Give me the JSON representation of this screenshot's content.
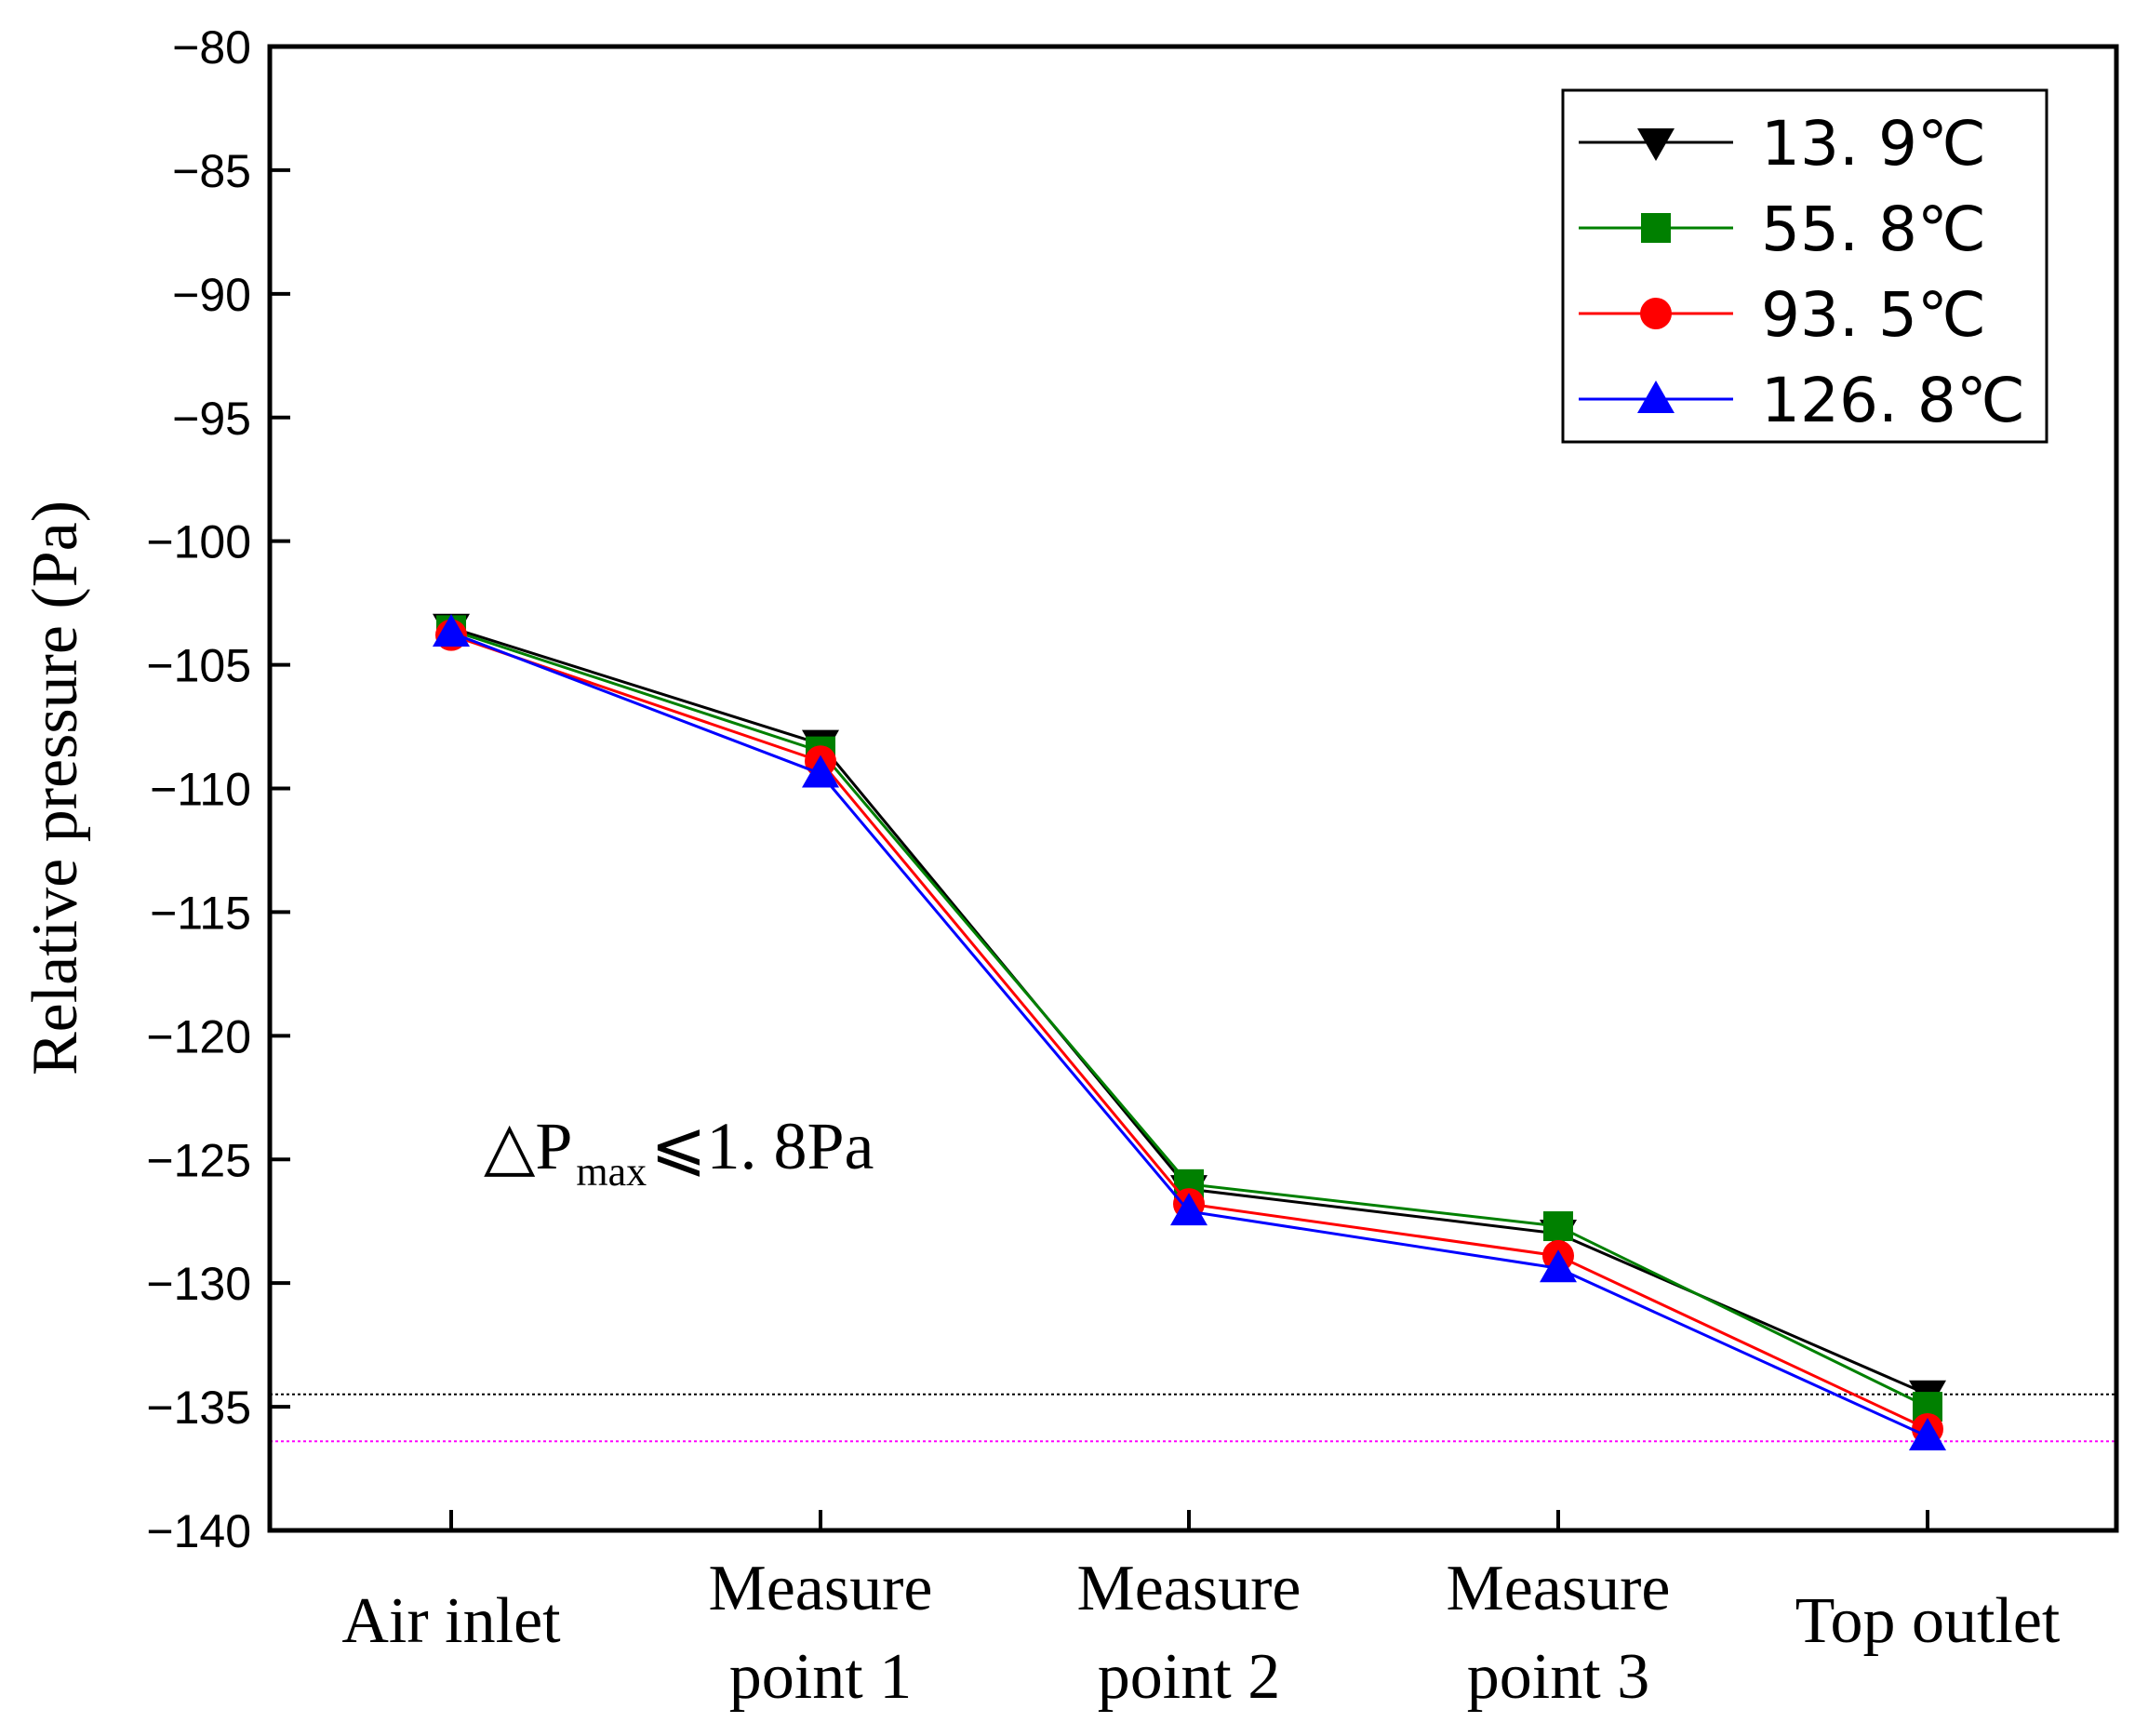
{
  "chart_data": {
    "type": "line",
    "title": "",
    "xlabel": "",
    "ylabel": "Relative pressure (Pa)",
    "ylim": [
      -140,
      -80
    ],
    "yticks": [
      -80,
      -85,
      -90,
      -95,
      -100,
      -105,
      -110,
      -115,
      -120,
      -125,
      -130,
      -135,
      -140
    ],
    "ytick_labels": [
      "−80",
      "−85",
      "−90",
      "−95",
      "−100",
      "−105",
      "−110",
      "−115",
      "−120",
      "−125",
      "−130",
      "−135",
      "−140"
    ],
    "categories": [
      [
        "Air inlet"
      ],
      [
        "Measure",
        "point 1"
      ],
      [
        "Measure",
        "point 2"
      ],
      [
        "Measure",
        "point 3"
      ],
      [
        "Top outlet"
      ]
    ],
    "series": [
      {
        "name": "13. 9℃",
        "color": "#000000",
        "marker": "triangle-down",
        "values": [
          -103.5,
          -108.2,
          -126.2,
          -128.0,
          -134.5
        ]
      },
      {
        "name": "55. 8℃",
        "color": "#008000",
        "marker": "square",
        "values": [
          -103.6,
          -108.5,
          -126.0,
          -127.7,
          -135.0
        ]
      },
      {
        "name": "93. 5℃",
        "color": "#ff0000",
        "marker": "circle",
        "values": [
          -103.8,
          -108.9,
          -126.8,
          -128.9,
          -135.9
        ]
      },
      {
        "name": "126. 8℃",
        "color": "#0000ff",
        "marker": "triangle-up",
        "values": [
          -103.7,
          -109.4,
          -127.1,
          -129.4,
          -136.2
        ]
      }
    ],
    "reference_lines": [
      {
        "y": -134.5,
        "color": "#000000",
        "style": "dotted"
      },
      {
        "y": -136.4,
        "color": "#ff00ff",
        "style": "dotted"
      }
    ],
    "annotation": {
      "prefix": "△P",
      "subscript": "max",
      "suffix": "⩽1. 8Pa"
    },
    "legend_position": "top-right",
    "grid": false
  }
}
